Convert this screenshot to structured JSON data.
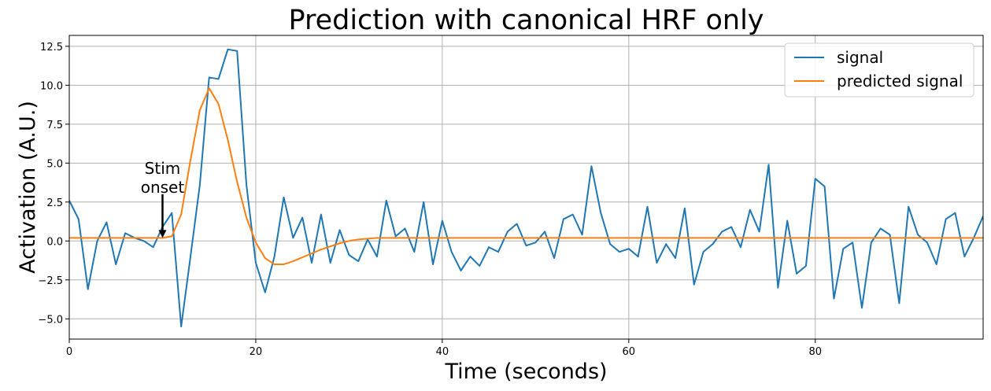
{
  "chart_data": {
    "type": "line",
    "title": "Prediction with canonical HRF only",
    "xlabel": "Time (seconds)",
    "ylabel": "Activation (A.U.)",
    "xlim": [
      0,
      98
    ],
    "ylim": [
      -6.3,
      13.2
    ],
    "xticks": [
      0,
      20,
      40,
      60,
      80
    ],
    "xtick_labels": [
      "0",
      "20",
      "40",
      "60",
      "80"
    ],
    "yticks": [
      -5.0,
      -2.5,
      0.0,
      2.5,
      5.0,
      7.5,
      10.0,
      12.5
    ],
    "ytick_labels": [
      "−5.0",
      "−2.5",
      "0.0",
      "2.5",
      "5.0",
      "7.5",
      "10.0",
      "12.5"
    ],
    "grid": true,
    "legend_position": "top-right",
    "series": [
      {
        "name": "signal",
        "color": "#1f77b4",
        "x": [
          0,
          1,
          2,
          3,
          4,
          5,
          6,
          7,
          8,
          9,
          10,
          11,
          12,
          13,
          14,
          15,
          16,
          17,
          18,
          19,
          20,
          21,
          22,
          23,
          24,
          25,
          26,
          27,
          28,
          29,
          30,
          31,
          32,
          33,
          34,
          35,
          36,
          37,
          38,
          39,
          40,
          41,
          42,
          43,
          44,
          45,
          46,
          47,
          48,
          49,
          50,
          51,
          52,
          53,
          54,
          55,
          56,
          57,
          58,
          59,
          60,
          61,
          62,
          63,
          64,
          65,
          66,
          67,
          68,
          69,
          70,
          71,
          72,
          73,
          74,
          75,
          76,
          77,
          78,
          79,
          80,
          81,
          82,
          83,
          84,
          85,
          86,
          87,
          88,
          89,
          90,
          91,
          92,
          93,
          94,
          95,
          96,
          97,
          98
        ],
        "values": [
          2.6,
          1.4,
          -3.1,
          0.0,
          1.2,
          -1.5,
          0.5,
          0.2,
          0.0,
          -0.4,
          0.9,
          1.8,
          -5.5,
          -1.0,
          3.6,
          10.5,
          10.4,
          12.3,
          12.2,
          3.6,
          -1.4,
          -3.3,
          -1.0,
          2.8,
          0.2,
          1.5,
          -1.4,
          1.7,
          -1.4,
          0.7,
          -0.9,
          -1.3,
          0.1,
          -1.0,
          2.6,
          0.3,
          0.8,
          -0.7,
          2.5,
          -1.5,
          1.3,
          -0.7,
          -1.9,
          -1.0,
          -1.6,
          -0.4,
          -0.7,
          0.6,
          1.1,
          -0.3,
          -0.1,
          0.6,
          -1.1,
          1.4,
          1.7,
          0.4,
          4.8,
          1.8,
          -0.2,
          -0.7,
          -0.5,
          -1.0,
          2.2,
          -1.4,
          -0.2,
          -1.1,
          2.1,
          -2.8,
          -0.7,
          -0.2,
          0.6,
          0.9,
          -0.4,
          2.0,
          0.6,
          4.9,
          -3.0,
          1.3,
          -2.1,
          -1.6,
          4.0,
          3.5,
          -3.7,
          -0.5,
          -0.1,
          -4.3,
          -0.1,
          0.8,
          0.4,
          -4.0,
          2.2,
          0.4,
          -0.1,
          -1.5,
          1.4,
          1.8,
          -1.0,
          0.2,
          1.6
        ]
      },
      {
        "name": "predicted signal",
        "color": "#ff7f0e",
        "x": [
          0,
          10,
          11,
          12,
          13,
          14,
          15,
          16,
          17,
          18,
          19,
          20,
          21,
          22,
          23,
          24,
          25,
          26,
          27,
          28,
          29,
          30,
          31,
          32,
          33,
          98
        ],
        "values": [
          0.2,
          0.2,
          0.3,
          1.7,
          5.2,
          8.4,
          9.8,
          8.8,
          6.5,
          3.8,
          1.5,
          -0.1,
          -1.1,
          -1.5,
          -1.5,
          -1.3,
          -1.05,
          -0.8,
          -0.55,
          -0.35,
          -0.15,
          0.0,
          0.1,
          0.15,
          0.2,
          0.2
        ]
      }
    ],
    "annotations": [
      {
        "text_lines": [
          "Stim",
          "onset"
        ],
        "arrow_x": 10,
        "arrow_y_start": 3.0,
        "arrow_y_end": 0.2
      }
    ]
  }
}
